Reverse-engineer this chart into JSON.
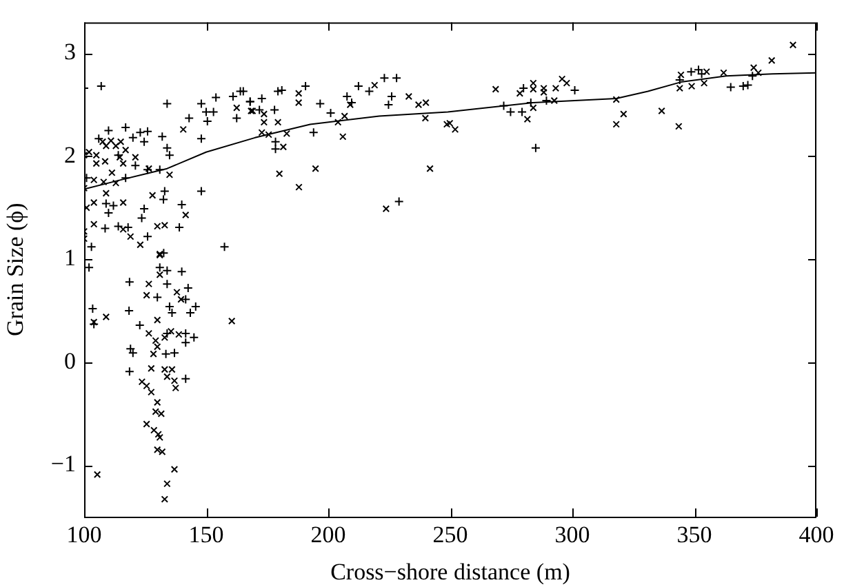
{
  "chart_data": {
    "type": "scatter",
    "xlabel": "Cross−shore distance (m)",
    "ylabel": "Grain Size (ϕ)",
    "xlim": [
      100,
      400
    ],
    "xticks": [
      100,
      150,
      200,
      250,
      300,
      350,
      400
    ],
    "ylim": [
      -1.5,
      3.3
    ],
    "yticks": [
      {
        "value": -1,
        "label": "−1"
      },
      0,
      1,
      2,
      3
    ],
    "grid": false,
    "legend": false,
    "series": [
      {
        "marker": "cross",
        "color": "#000000",
        "x": [
          100,
          107,
          134,
          148,
          154,
          161,
          164,
          168,
          150,
          153,
          150.5,
          143,
          162.5,
          148,
          110,
          117,
          123,
          126,
          120,
          132,
          124.6,
          134,
          135,
          106,
          114,
          121,
          126,
          131,
          117,
          101,
          133,
          132.5,
          148,
          109,
          112,
          110,
          124.6,
          123.6,
          140,
          139,
          108.6,
          114,
          118,
          126,
          103,
          132.6,
          157.5,
          102,
          131,
          134,
          140,
          118.6,
          134,
          142.6,
          130,
          135,
          141.6,
          145.7,
          103.5,
          118.4,
          136,
          143.5,
          122.8,
          104,
          134,
          141.6,
          145,
          141.6,
          119,
          120,
          133.5,
          137,
          118.6,
          141.6,
          165.2,
          168,
          172.8,
          171.8,
          178,
          179.4,
          181,
          190.7,
          196.7,
          201,
          207.7,
          209.6,
          212.4,
          216.8,
          223,
          228,
          226,
          224.7,
          194,
          178.4,
          178.4,
          229,
          271.9,
          274.7,
          279.4,
          280,
          283,
          289.4,
          301,
          285,
          344,
          348.7,
          351.7,
          353,
          364.9,
          370,
          371.9,
          373.8
        ],
        "values": [
          2.66,
          2.68,
          2.51,
          2.51,
          2.57,
          2.58,
          2.63,
          2.53,
          2.43,
          2.43,
          2.34,
          2.37,
          2.37,
          2.17,
          2.25,
          2.28,
          2.23,
          2.24,
          2.18,
          2.19,
          2.14,
          2.08,
          2.01,
          2.17,
          2.01,
          1.91,
          1.87,
          1.87,
          1.79,
          1.79,
          1.66,
          1.58,
          1.66,
          1.54,
          1.52,
          1.45,
          1.49,
          1.4,
          1.53,
          1.31,
          1.3,
          1.32,
          1.31,
          1.22,
          1.12,
          1.06,
          1.12,
          0.92,
          0.92,
          0.89,
          0.88,
          0.78,
          0.76,
          0.72,
          0.63,
          0.54,
          0.61,
          0.54,
          0.52,
          0.5,
          0.48,
          0.48,
          0.36,
          0.37,
          0.28,
          0.28,
          0.24,
          0.19,
          0.13,
          0.09,
          0.08,
          0.09,
          -0.09,
          -0.16,
          2.63,
          2.53,
          2.56,
          2.45,
          2.45,
          2.63,
          2.64,
          2.68,
          2.51,
          2.42,
          2.58,
          2.52,
          2.68,
          2.63,
          2.76,
          2.76,
          2.58,
          2.5,
          2.23,
          2.14,
          2.07,
          1.56,
          2.49,
          2.43,
          2.43,
          2.66,
          2.52,
          2.54,
          2.64,
          2.08,
          2.74,
          2.82,
          2.84,
          2.8,
          2.67,
          2.68,
          2.69,
          2.78
        ]
      },
      {
        "marker": "x",
        "color": "#000000",
        "x": [
          162.5,
          169,
          140.6,
          107.6,
          109,
          111,
          113,
          102,
          105,
          115,
          117,
          114.6,
          121,
          105,
          108.6,
          100,
          116,
          111.4,
          104,
          108,
          113,
          126.5,
          135,
          100,
          109,
          104,
          116,
          101,
          128,
          141.6,
          133,
          130,
          100,
          104,
          116,
          100,
          119,
          123,
          131,
          131,
          131,
          126.5,
          125.6,
          138,
          139.7,
          104,
          109,
          160.5,
          130,
          126.5,
          129.3,
          133,
          135.6,
          138.8,
          130,
          128.4,
          127.5,
          133,
          136,
          134,
          137,
          137.5,
          123.7,
          125.6,
          127.5,
          130,
          129.3,
          131.6,
          125.6,
          128.6,
          130.4,
          131,
          130,
          132,
          105.4,
          137,
          134,
          133,
          168.4,
          173.7,
          173.7,
          179.4,
          172.8,
          175.6,
          183,
          181.6,
          187.9,
          187.9,
          180,
          194.8,
          188,
          204,
          206.7,
          206,
          209,
          219,
          233,
          237,
          240,
          239.8,
          248.6,
          241.7,
          223.7,
          249.8,
          252,
          268.6,
          278.5,
          284,
          284,
          288.3,
          288.3,
          293.2,
          295.8,
          297.7,
          284,
          281.6,
          292.6,
          318,
          321,
          318,
          336.6,
          343.6,
          344.5,
          344,
          348.9,
          354,
          355,
          362,
          374.3,
          376.2,
          381.7,
          390.4
        ],
        "values": [
          2.47,
          2.44,
          2.26,
          2.14,
          2.1,
          2.15,
          2.1,
          2.04,
          2.01,
          2.14,
          2.06,
          1.99,
          1.99,
          1.93,
          1.95,
          2.01,
          1.93,
          1.84,
          1.77,
          1.75,
          1.74,
          1.88,
          1.82,
          1.69,
          1.64,
          1.55,
          1.55,
          1.5,
          1.62,
          1.43,
          1.33,
          1.32,
          1.27,
          1.34,
          1.29,
          1.2,
          1.22,
          1.14,
          1.05,
          1.04,
          0.85,
          0.76,
          0.65,
          0.68,
          0.61,
          0.39,
          0.44,
          0.4,
          0.41,
          0.28,
          0.21,
          0.24,
          0.3,
          0.27,
          0.15,
          0.08,
          -0.06,
          -0.07,
          -0.07,
          -0.14,
          -0.18,
          -0.25,
          -0.19,
          -0.23,
          -0.29,
          -0.39,
          -0.48,
          -0.5,
          -0.6,
          -0.66,
          -0.7,
          -0.73,
          -0.85,
          -0.87,
          -1.09,
          -1.04,
          -1.18,
          -1.33,
          2.44,
          2.41,
          2.33,
          2.33,
          2.23,
          2.21,
          2.22,
          2.09,
          2.61,
          2.52,
          1.83,
          1.88,
          1.7,
          2.33,
          2.39,
          2.19,
          2.5,
          2.69,
          2.58,
          2.5,
          2.52,
          2.37,
          2.31,
          1.88,
          1.49,
          2.32,
          2.26,
          2.65,
          2.61,
          2.71,
          2.65,
          2.66,
          2.62,
          2.66,
          2.75,
          2.71,
          2.47,
          2.36,
          2.54,
          2.55,
          2.41,
          2.31,
          2.44,
          2.29,
          2.79,
          2.66,
          2.68,
          2.71,
          2.82,
          2.81,
          2.86,
          2.81,
          2.93,
          3.08
        ]
      },
      {
        "type": "line",
        "marker": "none",
        "color": "#000000",
        "x": [
          100,
          115,
          134,
          150,
          170,
          192.6,
          220.9,
          249,
          284,
          318,
          331,
          344.5,
          363,
          382,
          400
        ],
        "values": [
          1.68,
          1.77,
          1.88,
          2.04,
          2.18,
          2.31,
          2.39,
          2.43,
          2.52,
          2.56,
          2.63,
          2.72,
          2.78,
          2.8,
          2.81
        ]
      }
    ]
  }
}
